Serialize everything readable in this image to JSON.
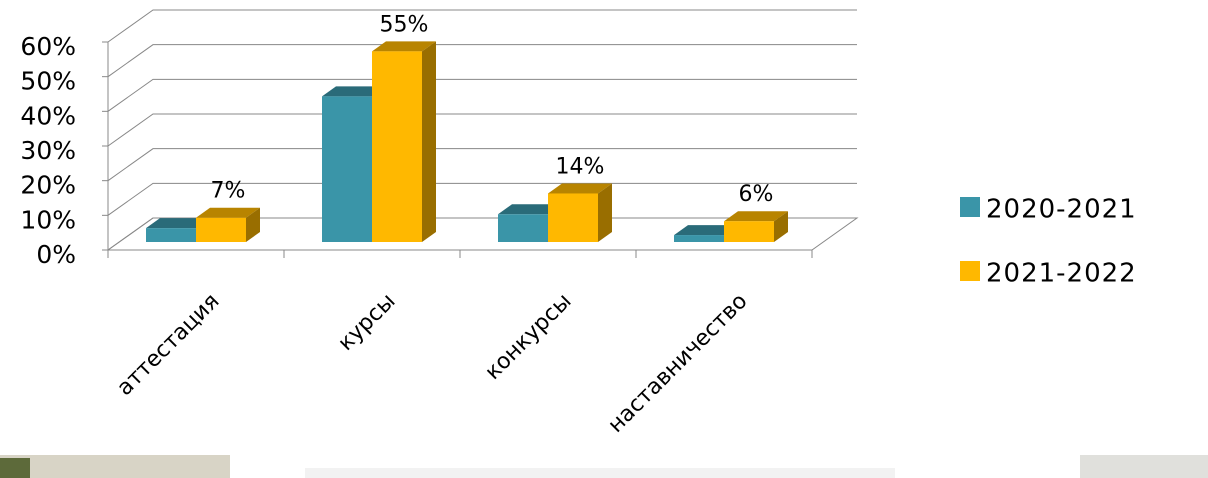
{
  "chart_data": {
    "type": "bar3d",
    "categories": [
      "аттестация",
      "курсы",
      "конкурсы",
      "наставничество"
    ],
    "series": [
      {
        "name": "2020-2021",
        "color": "#3a95a8",
        "values": [
          4,
          42,
          8,
          2
        ]
      },
      {
        "name": "2021-2022",
        "color": "#ffb800",
        "values": [
          7,
          55,
          14,
          6
        ],
        "value_labels": [
          "7%",
          "55%",
          "14%",
          "6%"
        ]
      }
    ],
    "ylim": [
      0,
      60
    ],
    "yticks": [
      {
        "value": 0,
        "label": "0%"
      },
      {
        "value": 10,
        "label": "10%"
      },
      {
        "value": 20,
        "label": "20%"
      },
      {
        "value": 30,
        "label": "30%"
      },
      {
        "value": 40,
        "label": "40%"
      },
      {
        "value": 50,
        "label": "50%"
      },
      {
        "value": 60,
        "label": "60%"
      }
    ],
    "grid": true,
    "legend": "right"
  }
}
